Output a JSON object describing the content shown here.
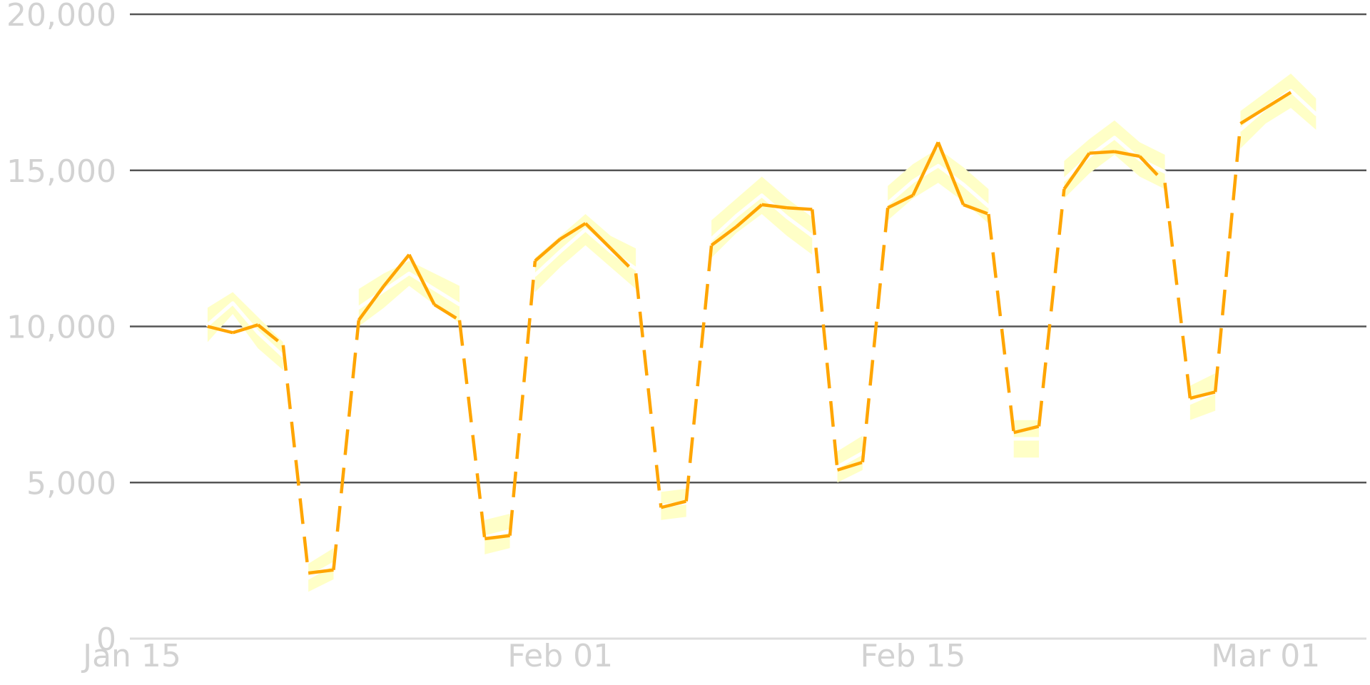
{
  "colors": {
    "background": "#ffffff",
    "grid": "#555555",
    "baseline": "#dddddd",
    "tick_text": "#d2d2d2",
    "main_line": "#ffa500",
    "band": "#ffffc7",
    "band_dash": "#ffffff"
  },
  "chart_data": {
    "type": "line",
    "xlabel": "",
    "ylabel": "",
    "xlim": [
      "2022-01-15",
      "2022-03-05"
    ],
    "ylim": [
      0,
      20000
    ],
    "grid": true,
    "y_ticks": [
      {
        "value": 0,
        "label": "0"
      },
      {
        "value": 5000,
        "label": "5,000"
      },
      {
        "value": 10000,
        "label": "10,000"
      },
      {
        "value": 15000,
        "label": "15,000"
      },
      {
        "value": 20000,
        "label": "20,000"
      }
    ],
    "x_ticks": [
      {
        "value": "2022-01-15",
        "label": "Jan 15"
      },
      {
        "value": "2022-02-01",
        "label": "Feb 01"
      },
      {
        "value": "2022-02-15",
        "label": "Feb 15"
      },
      {
        "value": "2022-03-01",
        "label": "Mar 01"
      }
    ],
    "series": [
      {
        "role": "main",
        "color": "#ffa500",
        "points": [
          {
            "date": "2022-01-18",
            "value": 10000,
            "style": "solid"
          },
          {
            "date": "2022-01-19",
            "value": 9800,
            "style": "solid"
          },
          {
            "date": "2022-01-20",
            "value": 10050,
            "style": "solid"
          },
          {
            "date": "2022-01-21",
            "value": 9400,
            "style": "dashed"
          },
          {
            "date": "2022-01-22",
            "value": 2100,
            "style": "dashed"
          },
          {
            "date": "2022-01-23",
            "value": 2200,
            "style": "dashed"
          },
          {
            "date": "2022-01-24",
            "value": 10200,
            "style": "solid"
          },
          {
            "date": "2022-01-25",
            "value": 11300,
            "style": "solid"
          },
          {
            "date": "2022-01-26",
            "value": 12300,
            "style": "solid"
          },
          {
            "date": "2022-01-27",
            "value": 10700,
            "style": "solid"
          },
          {
            "date": "2022-01-28",
            "value": 10200,
            "style": "dashed"
          },
          {
            "date": "2022-01-29",
            "value": 3200,
            "style": "dashed"
          },
          {
            "date": "2022-01-30",
            "value": 3300,
            "style": "dashed"
          },
          {
            "date": "2022-01-31",
            "value": 12100,
            "style": "solid"
          },
          {
            "date": "2022-02-01",
            "value": 12800,
            "style": "solid"
          },
          {
            "date": "2022-02-02",
            "value": 13300,
            "style": "solid"
          },
          {
            "date": "2022-02-03",
            "value": 12500,
            "style": "solid"
          },
          {
            "date": "2022-02-04",
            "value": 11700,
            "style": "dashed"
          },
          {
            "date": "2022-02-05",
            "value": 4200,
            "style": "dashed"
          },
          {
            "date": "2022-02-06",
            "value": 4400,
            "style": "dashed"
          },
          {
            "date": "2022-02-07",
            "value": 12600,
            "style": "solid"
          },
          {
            "date": "2022-02-08",
            "value": 13200,
            "style": "solid"
          },
          {
            "date": "2022-02-09",
            "value": 13900,
            "style": "solid"
          },
          {
            "date": "2022-02-10",
            "value": 13800,
            "style": "solid"
          },
          {
            "date": "2022-02-11",
            "value": 13750,
            "style": "dashed"
          },
          {
            "date": "2022-02-12",
            "value": 5400,
            "style": "dashed"
          },
          {
            "date": "2022-02-13",
            "value": 5650,
            "style": "dashed"
          },
          {
            "date": "2022-02-14",
            "value": 13800,
            "style": "solid"
          },
          {
            "date": "2022-02-15",
            "value": 14200,
            "style": "solid"
          },
          {
            "date": "2022-02-16",
            "value": 15900,
            "style": "solid"
          },
          {
            "date": "2022-02-17",
            "value": 13900,
            "style": "solid"
          },
          {
            "date": "2022-02-18",
            "value": 13600,
            "style": "dashed"
          },
          {
            "date": "2022-02-19",
            "value": 6600,
            "style": "dashed"
          },
          {
            "date": "2022-02-20",
            "value": 6800,
            "style": "dashed"
          },
          {
            "date": "2022-02-21",
            "value": 14400,
            "style": "solid"
          },
          {
            "date": "2022-02-22",
            "value": 15550,
            "style": "solid"
          },
          {
            "date": "2022-02-23",
            "value": 15600,
            "style": "solid"
          },
          {
            "date": "2022-02-24",
            "value": 15450,
            "style": "solid"
          },
          {
            "date": "2022-02-25",
            "value": 14600,
            "style": "dashed"
          },
          {
            "date": "2022-02-26",
            "value": 7700,
            "style": "dashed"
          },
          {
            "date": "2022-02-27",
            "value": 7900,
            "style": "dashed"
          },
          {
            "date": "2022-02-28",
            "value": 16500,
            "style": "solid"
          },
          {
            "date": "2022-03-01",
            "value": 17000,
            "style": "solid"
          },
          {
            "date": "2022-03-02",
            "value": 17500,
            "style": "solid"
          }
        ]
      },
      {
        "role": "band",
        "color": "#ffffc7",
        "dash_color": "#ffffff",
        "segments": [
          [
            {
              "date": "2022-01-18",
              "lower": 9500,
              "upper": 10600
            },
            {
              "date": "2022-01-19",
              "lower": 10400,
              "upper": 11100
            },
            {
              "date": "2022-01-20",
              "lower": 9300,
              "upper": 10300
            },
            {
              "date": "2022-01-21",
              "lower": 8600,
              "upper": 9500
            }
          ],
          [
            {
              "date": "2022-01-22",
              "lower": 1500,
              "upper": 2400
            },
            {
              "date": "2022-01-23",
              "lower": 1900,
              "upper": 2900
            }
          ],
          [
            {
              "date": "2022-01-24",
              "lower": 10000,
              "upper": 11200
            },
            {
              "date": "2022-01-25",
              "lower": 10600,
              "upper": 11700
            },
            {
              "date": "2022-01-26",
              "lower": 11300,
              "upper": 12100
            },
            {
              "date": "2022-01-27",
              "lower": 10700,
              "upper": 11700
            },
            {
              "date": "2022-01-28",
              "lower": 10100,
              "upper": 11300
            }
          ],
          [
            {
              "date": "2022-01-29",
              "lower": 2700,
              "upper": 3800
            },
            {
              "date": "2022-01-30",
              "lower": 2900,
              "upper": 4000
            }
          ],
          [
            {
              "date": "2022-01-31",
              "lower": 11100,
              "upper": 12200
            },
            {
              "date": "2022-02-01",
              "lower": 11900,
              "upper": 12900
            },
            {
              "date": "2022-02-02",
              "lower": 12600,
              "upper": 13600
            },
            {
              "date": "2022-02-03",
              "lower": 11900,
              "upper": 12900
            },
            {
              "date": "2022-02-04",
              "lower": 11200,
              "upper": 12500
            }
          ],
          [
            {
              "date": "2022-02-05",
              "lower": 3800,
              "upper": 4700
            },
            {
              "date": "2022-02-06",
              "lower": 3900,
              "upper": 4800
            }
          ],
          [
            {
              "date": "2022-02-07",
              "lower": 12200,
              "upper": 13400
            },
            {
              "date": "2022-02-08",
              "lower": 13000,
              "upper": 14100
            },
            {
              "date": "2022-02-09",
              "lower": 13600,
              "upper": 14800
            },
            {
              "date": "2022-02-10",
              "lower": 12900,
              "upper": 14100
            },
            {
              "date": "2022-02-11",
              "lower": 12300,
              "upper": 13500
            }
          ],
          [
            {
              "date": "2022-02-12",
              "lower": 5000,
              "upper": 6000
            },
            {
              "date": "2022-02-13",
              "lower": 5400,
              "upper": 6500
            }
          ],
          [
            {
              "date": "2022-02-14",
              "lower": 13400,
              "upper": 14500
            },
            {
              "date": "2022-02-15",
              "lower": 14100,
              "upper": 15200
            },
            {
              "date": "2022-02-16",
              "lower": 14600,
              "upper": 15700
            },
            {
              "date": "2022-02-17",
              "lower": 14000,
              "upper": 15100
            },
            {
              "date": "2022-02-18",
              "lower": 13300,
              "upper": 14400
            }
          ],
          [
            {
              "date": "2022-02-19",
              "lower": 5800,
              "upper": 7000
            },
            {
              "date": "2022-02-20",
              "lower": 5800,
              "upper": 7000
            }
          ],
          [
            {
              "date": "2022-02-21",
              "lower": 14100,
              "upper": 15300
            },
            {
              "date": "2022-02-22",
              "lower": 14900,
              "upper": 16000
            },
            {
              "date": "2022-02-23",
              "lower": 15500,
              "upper": 16600
            },
            {
              "date": "2022-02-24",
              "lower": 14800,
              "upper": 15900
            },
            {
              "date": "2022-02-25",
              "lower": 14400,
              "upper": 15500
            }
          ],
          [
            {
              "date": "2022-02-26",
              "lower": 7000,
              "upper": 8100
            },
            {
              "date": "2022-02-27",
              "lower": 7300,
              "upper": 8500
            }
          ],
          [
            {
              "date": "2022-02-28",
              "lower": 15700,
              "upper": 16900
            },
            {
              "date": "2022-03-01",
              "lower": 16500,
              "upper": 17500
            },
            {
              "date": "2022-03-02",
              "lower": 17000,
              "upper": 18100
            },
            {
              "date": "2022-03-03",
              "lower": 16300,
              "upper": 17300
            }
          ]
        ]
      }
    ]
  }
}
